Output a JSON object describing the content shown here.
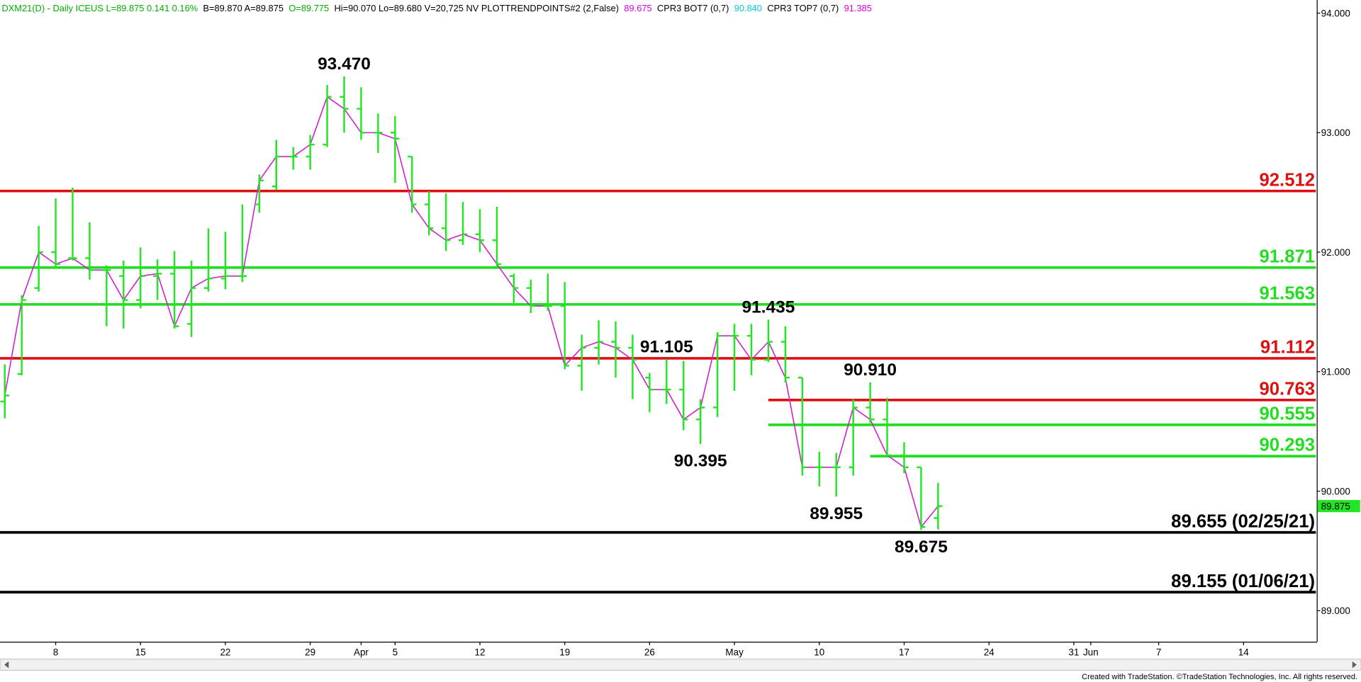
{
  "chart_data": {
    "type": "ohlc",
    "header": [
      {
        "text": "DXM21(D) - Daily  ICEUS  L=89.875  0.141  0.16%",
        "color": "#00b000"
      },
      {
        "text": "B=89.870  A=89.875",
        "color": "#000000"
      },
      {
        "text": "O=89.775",
        "color": "#00b000"
      },
      {
        "text": "Hi=90.070  Lo=89.680  V=20,725  NV  PLOTTRENDPOINTS#2 (2,False)",
        "color": "#000000"
      },
      {
        "text": "89.675",
        "color": "#e000e0"
      },
      {
        "text": "CPR3 BOT7 (0,7)",
        "color": "#000000"
      },
      {
        "text": "90.840",
        "color": "#00c8e0"
      },
      {
        "text": "CPR3 TOP7 (0,7)",
        "color": "#000000"
      },
      {
        "text": "91.385",
        "color": "#e000e0"
      }
    ],
    "categories": [
      null,
      null,
      null,
      "8",
      null,
      null,
      null,
      null,
      "15",
      null,
      null,
      null,
      null,
      "22",
      null,
      null,
      null,
      null,
      "29",
      null,
      null,
      "Apr",
      null,
      "5",
      null,
      null,
      null,
      null,
      "12",
      null,
      null,
      null,
      null,
      "19",
      null,
      null,
      null,
      null,
      "26",
      null,
      null,
      null,
      null,
      "May",
      null,
      null,
      null,
      null,
      "10",
      null,
      null,
      null,
      null,
      "17",
      null,
      null,
      null,
      null,
      "24",
      null,
      null,
      null,
      null,
      "31",
      "Jun",
      null,
      null,
      null,
      "7",
      null,
      null,
      null,
      null,
      "14",
      null,
      null,
      null,
      null
    ],
    "open": [
      90.75,
      90.98,
      91.7,
      92.0,
      91.95,
      91.95,
      91.85,
      91.8,
      91.6,
      91.8,
      91.82,
      91.4,
      91.7,
      91.78,
      91.8,
      92.4,
      92.55,
      92.8,
      92.8,
      92.9,
      93.3,
      93.2,
      93.0,
      93.0,
      92.8,
      92.4,
      92.2,
      92.1,
      92.15,
      92.1,
      91.8,
      91.7,
      91.55,
      91.55,
      91.05,
      91.2,
      91.25,
      91.2,
      90.95,
      90.85,
      90.85,
      90.6,
      90.7,
      91.3,
      91.3,
      91.1,
      91.25,
      90.95,
      90.2,
      90.2,
      90.2,
      90.7,
      90.6,
      90.3,
      90.2,
      89.775,
      null,
      null,
      null,
      null,
      null,
      null,
      null,
      null,
      null,
      null,
      null,
      null,
      null,
      null,
      null,
      null,
      null,
      null,
      null,
      null,
      null,
      null
    ],
    "high": [
      91.06,
      91.64,
      92.22,
      92.45,
      92.54,
      92.25,
      91.89,
      91.93,
      92.04,
      91.94,
      92.01,
      91.93,
      92.2,
      92.17,
      92.4,
      92.65,
      92.94,
      92.88,
      92.98,
      93.4,
      93.47,
      93.38,
      93.16,
      93.14,
      92.8,
      92.51,
      92.49,
      92.42,
      92.36,
      92.38,
      91.82,
      91.77,
      91.82,
      91.75,
      91.31,
      91.43,
      91.42,
      91.31,
      90.99,
      91.105,
      91.09,
      90.77,
      91.33,
      91.4,
      91.4,
      91.435,
      91.38,
      90.95,
      90.33,
      90.32,
      90.77,
      90.91,
      90.78,
      90.41,
      90.2,
      90.07,
      null,
      null,
      null,
      null,
      null,
      null,
      null,
      null,
      null,
      null,
      null,
      null,
      null,
      null,
      null,
      null,
      null,
      null,
      null,
      null,
      null,
      null
    ],
    "low": [
      90.61,
      90.97,
      91.67,
      91.86,
      91.93,
      91.77,
      91.38,
      91.36,
      91.53,
      91.6,
      91.36,
      91.29,
      91.67,
      91.69,
      91.75,
      92.33,
      92.52,
      92.69,
      92.69,
      92.88,
      93.0,
      92.94,
      92.83,
      92.58,
      92.33,
      92.14,
      92.01,
      92.06,
      92.0,
      91.86,
      91.55,
      91.49,
      91.51,
      91.02,
      90.84,
      91.06,
      90.95,
      90.77,
      90.66,
      90.73,
      90.51,
      90.395,
      90.62,
      90.84,
      90.97,
      91.08,
      90.91,
      90.13,
      90.04,
      89.955,
      90.13,
      90.57,
      90.28,
      90.15,
      89.675,
      89.68,
      null,
      null,
      null,
      null,
      null,
      null,
      null,
      null,
      null,
      null,
      null,
      null,
      null,
      null,
      null,
      null,
      null,
      null,
      null,
      null,
      null,
      null
    ],
    "close": [
      90.8,
      91.6,
      92.0,
      91.9,
      91.95,
      91.85,
      91.85,
      91.6,
      91.8,
      91.82,
      91.38,
      91.7,
      91.78,
      91.8,
      91.8,
      92.6,
      92.8,
      92.8,
      92.9,
      93.3,
      93.2,
      93.0,
      93.0,
      92.95,
      92.4,
      92.2,
      92.1,
      92.15,
      92.1,
      91.9,
      91.7,
      91.55,
      91.55,
      91.05,
      91.2,
      91.25,
      91.2,
      91.1,
      90.85,
      90.85,
      90.6,
      90.7,
      91.3,
      91.3,
      91.1,
      91.25,
      90.95,
      90.2,
      90.2,
      90.2,
      90.7,
      90.6,
      90.3,
      90.2,
      89.7,
      89.875,
      null,
      null,
      null,
      null,
      null,
      null,
      null,
      null,
      null,
      null,
      null,
      null,
      null,
      null,
      null,
      null,
      null,
      null,
      null,
      null,
      null,
      null
    ],
    "bar_color": "#22e622",
    "trend_color": "#d020d0",
    "ylim": [
      88.74,
      94.11
    ],
    "yticks": [
      {
        "value": 89,
        "label": "89.000"
      },
      {
        "value": 90,
        "label": "90.000"
      },
      {
        "value": 91,
        "label": "91.000"
      },
      {
        "value": 92,
        "label": "92.000"
      },
      {
        "value": 93,
        "label": "93.000"
      },
      {
        "value": 94,
        "label": "94.000"
      }
    ],
    "levels": [
      {
        "value": 92.512,
        "label": "92.512",
        "color": "#dd1111"
      },
      {
        "value": 91.871,
        "label": "91.871",
        "color": "#22dd22"
      },
      {
        "value": 91.563,
        "label": "91.563",
        "color": "#22dd22"
      },
      {
        "value": 91.112,
        "label": "91.112",
        "color": "#dd1111"
      },
      {
        "value": 90.763,
        "label": "90.763",
        "color": "#dd1111"
      },
      {
        "value": 90.555,
        "label": "90.555",
        "color": "#22dd22"
      },
      {
        "value": 90.293,
        "label": "90.293",
        "color": "#22dd22"
      },
      {
        "value": 89.655,
        "label": "89.655 (02/25/21)",
        "color": "#000000"
      },
      {
        "value": 89.155,
        "label": "89.155 (01/06/21)",
        "color": "#000000"
      }
    ],
    "annotations": [
      {
        "value": 93.47,
        "label": "93.470"
      },
      {
        "value": 91.435,
        "label": "91.435"
      },
      {
        "value": 91.105,
        "label": "91.105"
      },
      {
        "value": 90.395,
        "label": "90.395"
      },
      {
        "value": 90.91,
        "label": "90.910"
      },
      {
        "value": 89.955,
        "label": "89.955"
      },
      {
        "value": 89.675,
        "label": "89.675"
      }
    ],
    "footer": "Created with TradeStation. ©TradeStation Technologies, Inc. All rights reserved."
  }
}
